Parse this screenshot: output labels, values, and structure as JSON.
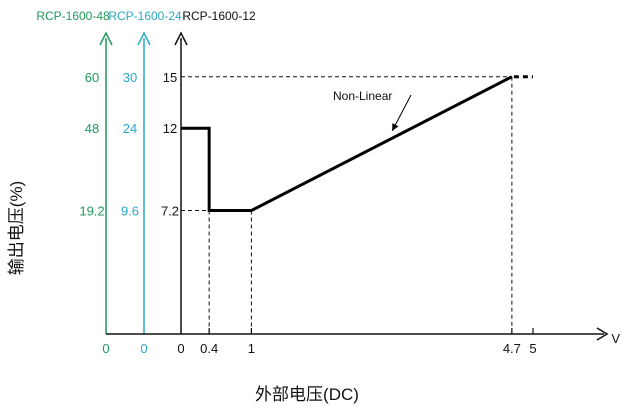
{
  "chart_data": {
    "type": "line",
    "title": "",
    "xlabel": "外部电压(DC)",
    "ylabel": "输出电压(%)",
    "x_unit": "V",
    "xlim": [
      0,
      5
    ],
    "x_ticks": [
      "0",
      "0.4",
      "1",
      "4.7",
      "5"
    ],
    "axes": [
      {
        "name": "RCP-1600-48",
        "color": "#1f9a5c",
        "zero_label": "0",
        "ticks": [
          "19.2",
          "48",
          "60"
        ]
      },
      {
        "name": "RCP-1600-24",
        "color": "#2aa8c8",
        "zero_label": "0",
        "ticks": [
          "9.6",
          "24",
          "30"
        ]
      },
      {
        "name": "RCP-1600-12",
        "color": "#111111",
        "zero_label": "0",
        "ticks": [
          "7.2",
          "12",
          "15"
        ]
      }
    ],
    "series": [
      {
        "values_axis": "RCP-1600-12",
        "x": [
          0,
          0.4,
          0.4,
          1,
          4.7
        ],
        "y": [
          12,
          12,
          7.2,
          7.2,
          15
        ]
      }
    ],
    "dotted_extension": {
      "x": [
        4.7,
        5
      ],
      "y": [
        15,
        15
      ]
    },
    "annotations": [
      {
        "text": "Non-Linear",
        "points_to": {
          "x": 3.0,
          "y": 11.9
        }
      }
    ]
  }
}
